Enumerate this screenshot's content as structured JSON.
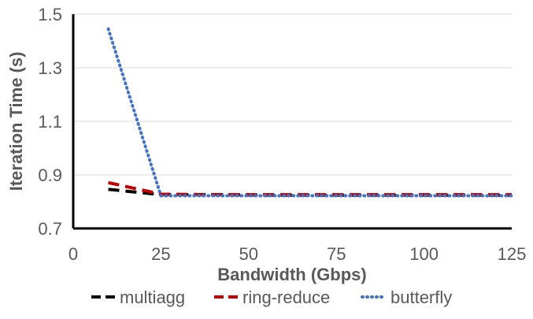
{
  "chart_data": {
    "type": "line",
    "xlabel": "Bandwidth (Gbps)",
    "ylabel": "Iteration Time (s)",
    "xlim": [
      0,
      125
    ],
    "ylim": [
      0.7,
      1.5
    ],
    "x_ticks": [
      "0",
      "25",
      "50",
      "75",
      "100",
      "125"
    ],
    "y_ticks": [
      "0.7",
      "0.9",
      "1.1",
      "1.3",
      "1.5"
    ],
    "grid": "horizontal",
    "legend_position": "bottom",
    "series": [
      {
        "name": "multiagg",
        "color": "#000000",
        "style": "dashed",
        "x": [
          10,
          25,
          40,
          55,
          70,
          85,
          100,
          115,
          125
        ],
        "values": [
          0.846,
          0.826,
          0.826,
          0.824,
          0.824,
          0.824,
          0.824,
          0.824,
          0.824
        ]
      },
      {
        "name": "ring-reduce",
        "color": "#c00000",
        "style": "dashed",
        "x": [
          10,
          25,
          40,
          55,
          70,
          85,
          100,
          115,
          125
        ],
        "values": [
          0.871,
          0.828,
          0.826,
          0.826,
          0.826,
          0.826,
          0.826,
          0.826,
          0.826
        ]
      },
      {
        "name": "butterfly",
        "color": "#4472c4",
        "style": "dotted",
        "x": [
          10,
          25,
          40,
          55,
          70,
          85,
          100,
          115,
          125
        ],
        "values": [
          1.445,
          0.822,
          0.822,
          0.822,
          0.822,
          0.822,
          0.822,
          0.822,
          0.822
        ]
      }
    ]
  }
}
